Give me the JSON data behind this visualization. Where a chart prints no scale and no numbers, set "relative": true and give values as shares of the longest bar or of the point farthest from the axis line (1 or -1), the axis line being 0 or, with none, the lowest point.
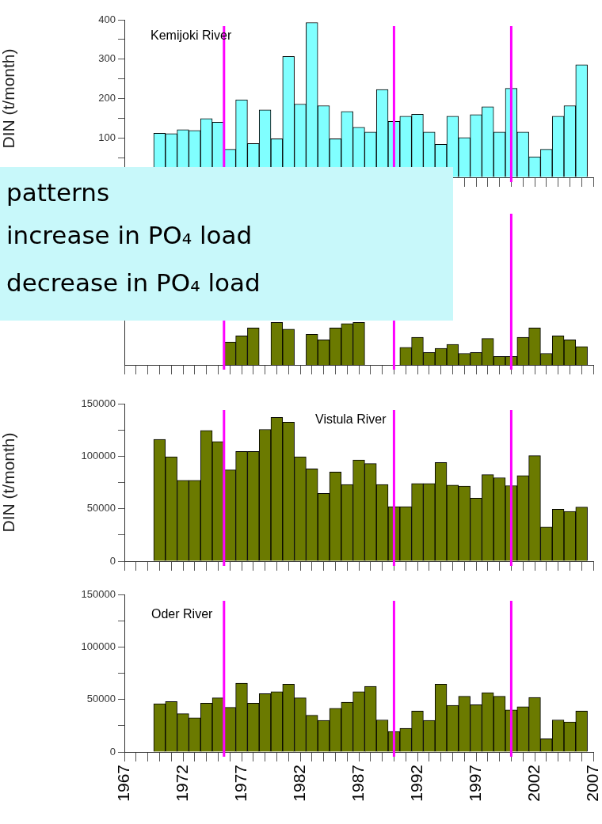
{
  "chart_data": [
    {
      "type": "bar",
      "title": "Kemijoki River",
      "ylabel": "DIN (t/month)",
      "color": "#80ffff",
      "tick_labels": "y",
      "x": [
        1970,
        1971,
        1972,
        1973,
        1974,
        1975,
        1976,
        1977,
        1978,
        1979,
        1980,
        1981,
        1982,
        1983,
        1984,
        1985,
        1986,
        1987,
        1988,
        1989,
        1990,
        1991,
        1992,
        1993,
        1994,
        1995,
        1996,
        1997,
        1998,
        1999,
        2000,
        2001,
        2002,
        2003,
        2004,
        2005,
        2006
      ],
      "values": [
        112,
        111,
        121,
        119,
        149,
        140,
        71,
        197,
        86,
        171,
        98,
        307,
        186,
        393,
        182,
        98,
        167,
        127,
        115,
        223,
        142,
        155,
        160,
        115,
        84,
        155,
        101,
        159,
        179,
        115,
        226,
        115,
        52,
        71,
        155,
        182,
        286
      ],
      "xlim": [
        1967,
        2007
      ],
      "xticks": [
        1967,
        {
          "value": 1968,
          "label": null
        },
        {
          "value": 1969,
          "label": null
        },
        {
          "value": 1970,
          "label": null
        },
        {
          "value": 1971,
          "label": null
        },
        1972,
        {
          "value": 1973,
          "label": null
        },
        {
          "value": 1974,
          "label": null
        },
        {
          "value": 1975,
          "label": null
        },
        {
          "value": 1976,
          "label": null
        },
        1977,
        {
          "value": 1978,
          "label": null
        },
        {
          "value": 1979,
          "label": null
        },
        {
          "value": 1980,
          "label": null
        },
        {
          "value": 1981,
          "label": null
        },
        1982,
        {
          "value": 1983,
          "label": null
        },
        {
          "value": 1984,
          "label": null
        },
        {
          "value": 1985,
          "label": null
        },
        {
          "value": 1986,
          "label": null
        },
        1987,
        {
          "value": 1988,
          "label": null
        },
        {
          "value": 1989,
          "label": null
        },
        {
          "value": 1990,
          "label": null
        },
        {
          "value": 1991,
          "label": null
        },
        1992,
        {
          "value": 1993,
          "label": null
        },
        {
          "value": 1994,
          "label": null
        },
        {
          "value": 1995,
          "label": null
        },
        {
          "value": 1996,
          "label": null
        },
        1997,
        {
          "value": 1998,
          "label": null
        },
        {
          "value": 1999,
          "label": null
        },
        {
          "value": 2000,
          "label": null
        },
        {
          "value": 2001,
          "label": null
        },
        2002,
        {
          "value": 2003,
          "label": null
        },
        {
          "value": 2004,
          "label": null
        },
        {
          "value": 2005,
          "label": null
        },
        {
          "value": 2006,
          "label": null
        },
        2007
      ],
      "ylim": [
        0,
        400
      ],
      "yticks": [
        {
          "value": 0,
          "label": null
        },
        {
          "value": 50,
          "label": null
        },
        100,
        {
          "value": 150,
          "label": null
        },
        200,
        {
          "value": 250,
          "label": null
        },
        300,
        {
          "value": 350,
          "label": null
        },
        400
      ],
      "ref_lines": [
        {
          "axis": "x",
          "value": 1975.5,
          "color": "#ff00ff"
        },
        {
          "axis": "x",
          "value": 1990,
          "color": "#ff00ff"
        },
        {
          "axis": "x",
          "value": 2000,
          "color": "#ff00ff"
        }
      ]
    },
    {
      "type": "bar",
      "relative": true,
      "color": "#6b7a00",
      "tick_labels": false,
      "x": [
        1976,
        1977,
        1978,
        1979,
        1980,
        1981,
        1982,
        1983,
        1984,
        1985,
        1986,
        1987,
        1988,
        1989,
        1990,
        1991,
        1992,
        1993,
        1994,
        1995,
        1996,
        1997,
        1998,
        1999,
        2000,
        2001,
        2002,
        2003,
        2004,
        2005,
        2006
      ],
      "values": [
        0.54,
        0.68,
        0.87,
        null,
        1.0,
        0.84,
        null,
        0.72,
        0.59,
        0.87,
        0.97,
        1.0,
        null,
        null,
        null,
        0.41,
        0.65,
        0.29,
        0.39,
        0.48,
        0.27,
        0.29,
        0.62,
        0.2,
        0.2,
        0.65,
        0.87,
        0.27,
        0.68,
        0.59,
        0.43
      ],
      "xlim": [
        1967,
        2007
      ],
      "xticks": [
        1967,
        {
          "value": 1968,
          "label": null
        },
        {
          "value": 1969,
          "label": null
        },
        {
          "value": 1970,
          "label": null
        },
        {
          "value": 1971,
          "label": null
        },
        1972,
        {
          "value": 1973,
          "label": null
        },
        {
          "value": 1974,
          "label": null
        },
        {
          "value": 1975,
          "label": null
        },
        {
          "value": 1976,
          "label": null
        },
        1977,
        {
          "value": 1978,
          "label": null
        },
        {
          "value": 1979,
          "label": null
        },
        {
          "value": 1980,
          "label": null
        },
        {
          "value": 1981,
          "label": null
        },
        1982,
        {
          "value": 1983,
          "label": null
        },
        {
          "value": 1984,
          "label": null
        },
        {
          "value": 1985,
          "label": null
        },
        {
          "value": 1986,
          "label": null
        },
        1987,
        {
          "value": 1988,
          "label": null
        },
        {
          "value": 1989,
          "label": null
        },
        {
          "value": 1990,
          "label": null
        },
        {
          "value": 1991,
          "label": null
        },
        1992,
        {
          "value": 1993,
          "label": null
        },
        {
          "value": 1994,
          "label": null
        },
        {
          "value": 1995,
          "label": null
        },
        {
          "value": 1996,
          "label": null
        },
        1997,
        {
          "value": 1998,
          "label": null
        },
        {
          "value": 1999,
          "label": null
        },
        {
          "value": 2000,
          "label": null
        },
        {
          "value": 2001,
          "label": null
        },
        2002,
        {
          "value": 2003,
          "label": null
        },
        {
          "value": 2004,
          "label": null
        },
        {
          "value": 2005,
          "label": null
        },
        {
          "value": 2006,
          "label": null
        },
        2007
      ],
      "ref_lines": [
        {
          "axis": "x",
          "value": 1975.5,
          "color": "#ff00ff"
        },
        {
          "axis": "x",
          "value": 1990,
          "color": "#ff00ff"
        },
        {
          "axis": "x",
          "value": 2000,
          "color": "#ff00ff"
        }
      ]
    },
    {
      "type": "bar",
      "title": "Vistula River",
      "ylabel": "DIN (t/month)",
      "color": "#6b7a00",
      "tick_labels": "y",
      "x": [
        1970,
        1971,
        1972,
        1973,
        1974,
        1975,
        1976,
        1977,
        1978,
        1979,
        1980,
        1981,
        1982,
        1983,
        1984,
        1985,
        1986,
        1987,
        1988,
        1989,
        1990,
        1991,
        1992,
        1993,
        1994,
        1995,
        1996,
        1997,
        1998,
        1999,
        2000,
        2001,
        2002,
        2003,
        2004,
        2005,
        2006
      ],
      "values": [
        116000,
        99500,
        77000,
        77000,
        124500,
        114000,
        87000,
        104500,
        104500,
        125500,
        137000,
        132500,
        99500,
        88000,
        64500,
        85000,
        73000,
        96500,
        93000,
        73000,
        52000,
        52000,
        74000,
        74000,
        94000,
        72500,
        71500,
        60000,
        82500,
        79500,
        72000,
        81500,
        100500,
        32500,
        49500,
        47500,
        51500
      ],
      "xlim": [
        1967,
        2007
      ],
      "xticks": [
        1967,
        {
          "value": 1968,
          "label": null
        },
        {
          "value": 1969,
          "label": null
        },
        {
          "value": 1970,
          "label": null
        },
        {
          "value": 1971,
          "label": null
        },
        1972,
        {
          "value": 1973,
          "label": null
        },
        {
          "value": 1974,
          "label": null
        },
        {
          "value": 1975,
          "label": null
        },
        {
          "value": 1976,
          "label": null
        },
        1977,
        {
          "value": 1978,
          "label": null
        },
        {
          "value": 1979,
          "label": null
        },
        {
          "value": 1980,
          "label": null
        },
        {
          "value": 1981,
          "label": null
        },
        1982,
        {
          "value": 1983,
          "label": null
        },
        {
          "value": 1984,
          "label": null
        },
        {
          "value": 1985,
          "label": null
        },
        {
          "value": 1986,
          "label": null
        },
        1987,
        {
          "value": 1988,
          "label": null
        },
        {
          "value": 1989,
          "label": null
        },
        {
          "value": 1990,
          "label": null
        },
        {
          "value": 1991,
          "label": null
        },
        1992,
        {
          "value": 1993,
          "label": null
        },
        {
          "value": 1994,
          "label": null
        },
        {
          "value": 1995,
          "label": null
        },
        {
          "value": 1996,
          "label": null
        },
        1997,
        {
          "value": 1998,
          "label": null
        },
        {
          "value": 1999,
          "label": null
        },
        {
          "value": 2000,
          "label": null
        },
        {
          "value": 2001,
          "label": null
        },
        2002,
        {
          "value": 2003,
          "label": null
        },
        {
          "value": 2004,
          "label": null
        },
        {
          "value": 2005,
          "label": null
        },
        {
          "value": 2006,
          "label": null
        },
        2007
      ],
      "ylim": [
        0,
        150000
      ],
      "yticks": [
        0,
        {
          "value": 25000,
          "label": null
        },
        50000,
        {
          "value": 75000,
          "label": null
        },
        100000,
        {
          "value": 125000,
          "label": null
        },
        150000
      ],
      "ref_lines": [
        {
          "axis": "x",
          "value": 1975.5,
          "color": "#ff00ff"
        },
        {
          "axis": "x",
          "value": 1990,
          "color": "#ff00ff"
        },
        {
          "axis": "x",
          "value": 2000,
          "color": "#ff00ff"
        }
      ]
    },
    {
      "type": "bar",
      "title": "Oder River",
      "color": "#6b7a00",
      "x": [
        1970,
        1971,
        1972,
        1973,
        1974,
        1975,
        1976,
        1977,
        1978,
        1979,
        1980,
        1981,
        1982,
        1983,
        1984,
        1985,
        1986,
        1987,
        1988,
        1989,
        1990,
        1991,
        1992,
        1993,
        1994,
        1995,
        1996,
        1997,
        1998,
        1999,
        2000,
        2001,
        2002,
        2003,
        2004,
        2005,
        2006
      ],
      "values": [
        46000,
        48000,
        36500,
        32500,
        46500,
        51500,
        42500,
        65500,
        46500,
        55500,
        57500,
        64500,
        51500,
        35000,
        30000,
        41500,
        47500,
        57500,
        62500,
        30500,
        19500,
        22500,
        39000,
        30000,
        64500,
        44500,
        53000,
        45000,
        56500,
        53000,
        40000,
        43000,
        52000,
        12500,
        30500,
        28500,
        39000
      ],
      "xlim": [
        1967,
        2007
      ],
      "xticks": [
        1967,
        {
          "value": 1968,
          "label": null
        },
        {
          "value": 1969,
          "label": null
        },
        {
          "value": 1970,
          "label": null
        },
        {
          "value": 1971,
          "label": null
        },
        1972,
        {
          "value": 1973,
          "label": null
        },
        {
          "value": 1974,
          "label": null
        },
        {
          "value": 1975,
          "label": null
        },
        {
          "value": 1976,
          "label": null
        },
        1977,
        {
          "value": 1978,
          "label": null
        },
        {
          "value": 1979,
          "label": null
        },
        {
          "value": 1980,
          "label": null
        },
        {
          "value": 1981,
          "label": null
        },
        1982,
        {
          "value": 1983,
          "label": null
        },
        {
          "value": 1984,
          "label": null
        },
        {
          "value": 1985,
          "label": null
        },
        {
          "value": 1986,
          "label": null
        },
        1987,
        {
          "value": 1988,
          "label": null
        },
        {
          "value": 1989,
          "label": null
        },
        {
          "value": 1990,
          "label": null
        },
        {
          "value": 1991,
          "label": null
        },
        1992,
        {
          "value": 1993,
          "label": null
        },
        {
          "value": 1994,
          "label": null
        },
        {
          "value": 1995,
          "label": null
        },
        {
          "value": 1996,
          "label": null
        },
        1997,
        {
          "value": 1998,
          "label": null
        },
        {
          "value": 1999,
          "label": null
        },
        {
          "value": 2000,
          "label": null
        },
        {
          "value": 2001,
          "label": null
        },
        2002,
        {
          "value": 2003,
          "label": null
        },
        {
          "value": 2004,
          "label": null
        },
        {
          "value": 2005,
          "label": null
        },
        {
          "value": 2006,
          "label": null
        },
        2007
      ],
      "ylim": [
        0,
        150000
      ],
      "yticks": [
        0,
        {
          "value": 25000,
          "label": null
        },
        50000,
        {
          "value": 75000,
          "label": null
        },
        100000,
        {
          "value": 125000,
          "label": null
        },
        150000
      ],
      "ref_lines": [
        {
          "axis": "x",
          "value": 1975.5,
          "color": "#ff00ff"
        },
        {
          "axis": "x",
          "value": 1990,
          "color": "#ff00ff"
        },
        {
          "axis": "x",
          "value": 2000,
          "color": "#ff00ff"
        }
      ]
    },
    {
      "type": "other",
      "annotations": [
        "patterns",
        "increase in PO₄ load",
        "decrease in PO₄ load"
      ]
    }
  ]
}
